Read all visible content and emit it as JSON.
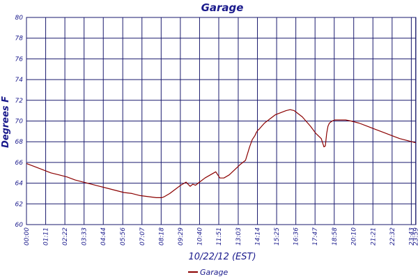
{
  "chart_data": {
    "type": "line",
    "title": "Garage",
    "xlabel": "10/22/12 (EST)",
    "ylabel": "Degrees F",
    "ylim": [
      60,
      80
    ],
    "yticks": [
      60,
      62,
      64,
      66,
      68,
      70,
      72,
      74,
      76,
      78,
      80
    ],
    "xlim_minutes": [
      0,
      1440
    ],
    "xtick_labels": [
      "00:00",
      "01:11",
      "02:22",
      "03:33",
      "04:44",
      "05:56",
      "07:07",
      "08:18",
      "09:29",
      "10:40",
      "11:51",
      "13:03",
      "14:14",
      "15:25",
      "16:36",
      "17:47",
      "18:58",
      "20:10",
      "21:21",
      "22:32",
      "23:43",
      "23:59"
    ],
    "xtick_minutes": [
      0,
      71,
      142,
      213,
      284,
      356,
      427,
      498,
      569,
      640,
      711,
      783,
      854,
      925,
      996,
      1067,
      1138,
      1210,
      1281,
      1352,
      1423,
      1439
    ],
    "grid": true,
    "legend_position": "bottom-center",
    "series": [
      {
        "name": "Garage",
        "color": "#8b0000",
        "x": [
          0,
          30,
          60,
          90,
          120,
          150,
          180,
          210,
          240,
          270,
          300,
          330,
          360,
          390,
          420,
          450,
          480,
          500,
          510,
          530,
          550,
          570,
          590,
          605,
          615,
          625,
          640,
          660,
          680,
          700,
          710,
          715,
          720,
          730,
          750,
          770,
          790,
          810,
          825,
          835,
          845,
          850,
          855,
          860,
          870,
          880,
          900,
          920,
          940,
          960,
          975,
          990,
          1000,
          1010,
          1020,
          1030,
          1050,
          1070,
          1090,
          1100,
          1105,
          1110,
          1115,
          1120,
          1130,
          1140,
          1160,
          1180,
          1200,
          1230,
          1260,
          1290,
          1320,
          1350,
          1380,
          1410,
          1439
        ],
        "y": [
          65.9,
          65.6,
          65.3,
          65.0,
          64.8,
          64.6,
          64.3,
          64.1,
          63.9,
          63.7,
          63.5,
          63.3,
          63.1,
          63.0,
          62.8,
          62.7,
          62.6,
          62.6,
          62.7,
          63.0,
          63.4,
          63.8,
          64.1,
          63.7,
          63.9,
          63.8,
          64.1,
          64.5,
          64.8,
          65.1,
          64.7,
          64.5,
          64.5,
          64.5,
          64.8,
          65.3,
          65.8,
          66.2,
          67.5,
          68.2,
          68.6,
          68.9,
          69.1,
          69.2,
          69.5,
          69.8,
          70.2,
          70.6,
          70.8,
          71.0,
          71.1,
          71.0,
          70.8,
          70.6,
          70.4,
          70.1,
          69.5,
          68.8,
          68.3,
          67.5,
          67.6,
          68.8,
          69.5,
          69.8,
          70.0,
          70.1,
          70.1,
          70.1,
          70.0,
          69.8,
          69.5,
          69.2,
          68.9,
          68.6,
          68.3,
          68.1,
          67.9
        ]
      }
    ]
  }
}
